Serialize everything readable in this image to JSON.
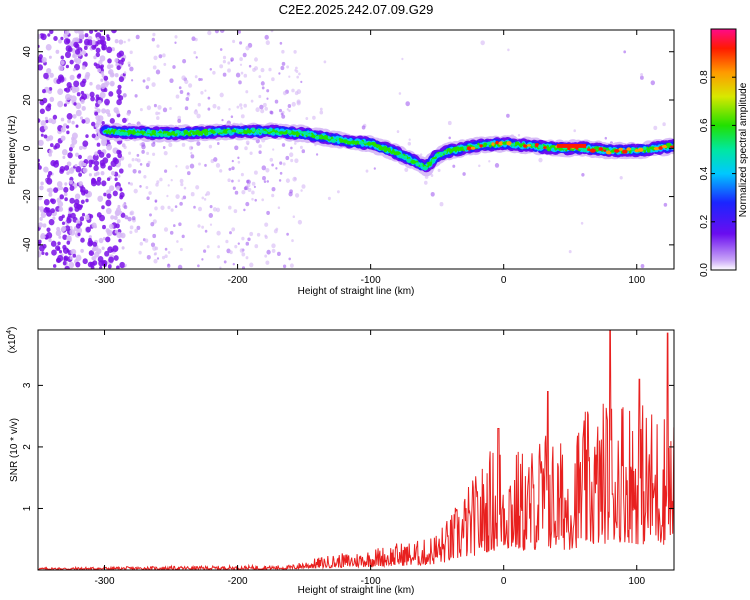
{
  "figure_title": "C2E2.2025.242.07.09.G29",
  "colors": {
    "axis": "#000000",
    "snr_line": "#e8201f",
    "spec_dark": "#7a10e6",
    "spec_light": "#d6b8f5"
  },
  "chart_data": [
    {
      "type": "heatmap",
      "xlabel": "Height of straight line (km)",
      "ylabel": "Frequency (Hz)",
      "xlim": [
        -350,
        128
      ],
      "ylim": [
        -50,
        49
      ],
      "xticks": [
        -300,
        -200,
        -100,
        0,
        100
      ],
      "xtick_labels": [
        "-300",
        "-200",
        "-100",
        "0",
        "100"
      ],
      "yticks": [
        -40,
        -20,
        0,
        20,
        40
      ],
      "ytick_labels": [
        "-40",
        "-20",
        "0",
        "20",
        "40"
      ],
      "colorbar": {
        "label": "Normalized spectral amplitude",
        "range": [
          0,
          1
        ],
        "ticks": [
          0.0,
          0.2,
          0.4,
          0.6,
          0.8
        ],
        "tick_labels": [
          "0.0",
          "0.2",
          "0.4",
          "0.6",
          "0.8"
        ]
      },
      "ridge_x": [
        -350,
        -300,
        -250,
        -200,
        -175,
        -150,
        -120,
        -100,
        -80,
        -65,
        -58,
        -50,
        -40,
        -30,
        -20,
        0,
        20,
        40,
        60,
        80,
        100,
        128
      ],
      "ridge_freq": [
        7,
        7,
        6,
        7,
        7,
        6,
        3,
        2,
        -2,
        -6,
        -8,
        -3,
        -1,
        0,
        1,
        2,
        1,
        0,
        0,
        -1,
        -1,
        1
      ]
    },
    {
      "type": "line",
      "xlabel": "Height of straight line (km)",
      "ylabel": "SNR (10 * v/v)",
      "multiplier_label": "(x10",
      "multiplier_exp": "4",
      "xlim": [
        -350,
        128
      ],
      "ylim": [
        0,
        3.9
      ],
      "xticks": [
        -300,
        -200,
        -100,
        0,
        100
      ],
      "xtick_labels": [
        "-300",
        "-200",
        "-100",
        "0",
        "100"
      ],
      "yticks": [
        1,
        2,
        3
      ],
      "ytick_labels": [
        "1",
        "2",
        "3"
      ],
      "envelope_x": [
        -350,
        -300,
        -250,
        -200,
        -160,
        -150,
        -130,
        -110,
        -100,
        -80,
        -60,
        -50,
        -40,
        -30,
        -20,
        -10,
        0,
        10,
        20,
        30,
        40,
        50,
        60,
        70,
        80,
        90,
        100,
        110,
        120,
        128
      ],
      "envelope_y": [
        0.04,
        0.05,
        0.06,
        0.07,
        0.08,
        0.15,
        0.25,
        0.3,
        0.35,
        0.45,
        0.5,
        0.65,
        0.9,
        1.3,
        1.6,
        2.0,
        2.2,
        2.0,
        2.0,
        2.4,
        2.1,
        2.2,
        2.6,
        2.6,
        3.0,
        3.0,
        2.8,
        2.7,
        2.7,
        2.5
      ],
      "peaks": [
        {
          "x": 33,
          "y": 2.9
        },
        {
          "x": 80,
          "y": 3.9
        },
        {
          "x": 123,
          "y": 3.85
        },
        {
          "x": 102,
          "y": 3.1
        },
        {
          "x": -4,
          "y": 2.3
        }
      ]
    }
  ]
}
